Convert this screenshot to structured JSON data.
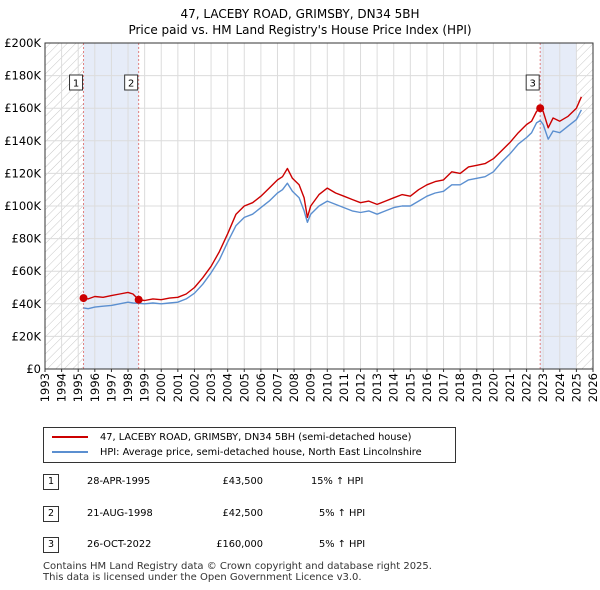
{
  "chart_data": {
    "type": "line",
    "title": "47, LACEBY ROAD, GRIMSBY, DN34 5BH",
    "subtitle": "Price paid vs. HM Land Registry's House Price Index (HPI)",
    "xlabel": "",
    "ylabel": "",
    "xlim": [
      1993,
      2026
    ],
    "ylim": [
      0,
      200000
    ],
    "x_ticks": [
      1993,
      1994,
      1995,
      1996,
      1997,
      1998,
      1999,
      2000,
      2001,
      2002,
      2003,
      2004,
      2005,
      2006,
      2007,
      2008,
      2009,
      2010,
      2011,
      2012,
      2013,
      2014,
      2015,
      2016,
      2017,
      2018,
      2019,
      2020,
      2021,
      2022,
      2023,
      2024,
      2025,
      2026
    ],
    "y_ticks": [
      {
        "value": 0,
        "label": "£0"
      },
      {
        "value": 20000,
        "label": "£20K"
      },
      {
        "value": 40000,
        "label": "£40K"
      },
      {
        "value": 60000,
        "label": "£60K"
      },
      {
        "value": 80000,
        "label": "£80K"
      },
      {
        "value": 100000,
        "label": "£100K"
      },
      {
        "value": 120000,
        "label": "£120K"
      },
      {
        "value": 140000,
        "label": "£140K"
      },
      {
        "value": 160000,
        "label": "£160K"
      },
      {
        "value": 180000,
        "label": "£180K"
      },
      {
        "value": 200000,
        "label": "£200K"
      }
    ],
    "grid": true,
    "hatched_ranges": [
      [
        1993,
        1995.32
      ],
      [
        2025.0,
        2026
      ]
    ],
    "shaded_range": [
      1995.32,
      1998.64
    ],
    "shaded_range_2": [
      2022.82,
      2025.0
    ],
    "series": [
      {
        "name": "47, LACEBY ROAD, GRIMSBY, DN34 5BH (semi-detached house)",
        "color": "#cc0000",
        "points": [
          [
            1995.32,
            43500
          ],
          [
            1995.6,
            43000
          ],
          [
            1996.0,
            44500
          ],
          [
            1996.5,
            44000
          ],
          [
            1997.0,
            45000
          ],
          [
            1997.5,
            46000
          ],
          [
            1998.0,
            47000
          ],
          [
            1998.3,
            46000
          ],
          [
            1998.64,
            42500
          ],
          [
            1999.0,
            42000
          ],
          [
            1999.5,
            43000
          ],
          [
            2000.0,
            42500
          ],
          [
            2000.5,
            43500
          ],
          [
            2001.0,
            44000
          ],
          [
            2001.5,
            46000
          ],
          [
            2002.0,
            50000
          ],
          [
            2002.5,
            56000
          ],
          [
            2003.0,
            63000
          ],
          [
            2003.5,
            72000
          ],
          [
            2004.0,
            83000
          ],
          [
            2004.5,
            95000
          ],
          [
            2005.0,
            100000
          ],
          [
            2005.5,
            102000
          ],
          [
            2006.0,
            106000
          ],
          [
            2006.5,
            111000
          ],
          [
            2007.0,
            116000
          ],
          [
            2007.3,
            118000
          ],
          [
            2007.6,
            123000
          ],
          [
            2007.9,
            117000
          ],
          [
            2008.3,
            113000
          ],
          [
            2008.6,
            105000
          ],
          [
            2008.8,
            93000
          ],
          [
            2009.0,
            100000
          ],
          [
            2009.5,
            107000
          ],
          [
            2010.0,
            111000
          ],
          [
            2010.5,
            108000
          ],
          [
            2011.0,
            106000
          ],
          [
            2011.5,
            104000
          ],
          [
            2012.0,
            102000
          ],
          [
            2012.5,
            103000
          ],
          [
            2013.0,
            101000
          ],
          [
            2013.5,
            103000
          ],
          [
            2014.0,
            105000
          ],
          [
            2014.5,
            107000
          ],
          [
            2015.0,
            106000
          ],
          [
            2015.5,
            110000
          ],
          [
            2016.0,
            113000
          ],
          [
            2016.5,
            115000
          ],
          [
            2017.0,
            116000
          ],
          [
            2017.5,
            121000
          ],
          [
            2018.0,
            120000
          ],
          [
            2018.5,
            124000
          ],
          [
            2019.0,
            125000
          ],
          [
            2019.5,
            126000
          ],
          [
            2020.0,
            129000
          ],
          [
            2020.5,
            134000
          ],
          [
            2021.0,
            139000
          ],
          [
            2021.5,
            145000
          ],
          [
            2022.0,
            150000
          ],
          [
            2022.3,
            152000
          ],
          [
            2022.6,
            158000
          ],
          [
            2022.82,
            160000
          ],
          [
            2023.0,
            158000
          ],
          [
            2023.3,
            148000
          ],
          [
            2023.6,
            154000
          ],
          [
            2024.0,
            152000
          ],
          [
            2024.5,
            155000
          ],
          [
            2025.0,
            160000
          ],
          [
            2025.3,
            167000
          ]
        ]
      },
      {
        "name": "HPI: Average price, semi-detached house, North East Lincolnshire",
        "color": "#5b8fd0",
        "points": [
          [
            1995.32,
            37500
          ],
          [
            1995.6,
            37000
          ],
          [
            1996.0,
            38000
          ],
          [
            1996.5,
            38500
          ],
          [
            1997.0,
            39000
          ],
          [
            1997.5,
            40000
          ],
          [
            1998.0,
            41000
          ],
          [
            1998.3,
            40500
          ],
          [
            1998.64,
            40300
          ],
          [
            1999.0,
            40000
          ],
          [
            1999.5,
            40500
          ],
          [
            2000.0,
            40000
          ],
          [
            2000.5,
            40500
          ],
          [
            2001.0,
            41000
          ],
          [
            2001.5,
            43000
          ],
          [
            2002.0,
            46500
          ],
          [
            2002.5,
            52000
          ],
          [
            2003.0,
            59000
          ],
          [
            2003.5,
            67000
          ],
          [
            2004.0,
            78000
          ],
          [
            2004.5,
            88000
          ],
          [
            2005.0,
            93000
          ],
          [
            2005.5,
            95000
          ],
          [
            2006.0,
            99000
          ],
          [
            2006.5,
            103000
          ],
          [
            2007.0,
            108000
          ],
          [
            2007.3,
            110000
          ],
          [
            2007.6,
            114000
          ],
          [
            2007.9,
            109000
          ],
          [
            2008.3,
            105000
          ],
          [
            2008.6,
            97000
          ],
          [
            2008.8,
            90000
          ],
          [
            2009.0,
            95000
          ],
          [
            2009.5,
            100000
          ],
          [
            2010.0,
            103000
          ],
          [
            2010.5,
            101000
          ],
          [
            2011.0,
            99000
          ],
          [
            2011.5,
            97000
          ],
          [
            2012.0,
            96000
          ],
          [
            2012.5,
            97000
          ],
          [
            2013.0,
            95000
          ],
          [
            2013.5,
            97000
          ],
          [
            2014.0,
            99000
          ],
          [
            2014.5,
            100000
          ],
          [
            2015.0,
            100000
          ],
          [
            2015.5,
            103000
          ],
          [
            2016.0,
            106000
          ],
          [
            2016.5,
            108000
          ],
          [
            2017.0,
            109000
          ],
          [
            2017.5,
            113000
          ],
          [
            2018.0,
            113000
          ],
          [
            2018.5,
            116000
          ],
          [
            2019.0,
            117000
          ],
          [
            2019.5,
            118000
          ],
          [
            2020.0,
            121000
          ],
          [
            2020.5,
            127000
          ],
          [
            2021.0,
            132000
          ],
          [
            2021.5,
            138000
          ],
          [
            2022.0,
            142000
          ],
          [
            2022.3,
            145000
          ],
          [
            2022.6,
            151000
          ],
          [
            2022.82,
            152400
          ],
          [
            2023.0,
            150000
          ],
          [
            2023.3,
            141000
          ],
          [
            2023.6,
            146000
          ],
          [
            2024.0,
            145000
          ],
          [
            2024.5,
            149000
          ],
          [
            2025.0,
            153000
          ],
          [
            2025.3,
            159000
          ]
        ]
      }
    ],
    "sales": [
      {
        "num": "1",
        "x": 1995.32,
        "value": 43500,
        "date": "28-APR-1995",
        "price": "£43,500",
        "hpi": "15% ↑ HPI"
      },
      {
        "num": "2",
        "x": 1998.64,
        "value": 42500,
        "date": "21-AUG-1998",
        "price": "£42,500",
        "hpi": "5% ↑ HPI"
      },
      {
        "num": "3",
        "x": 2022.82,
        "value": 160000,
        "date": "26-OCT-2022",
        "price": "£160,000",
        "hpi": "5% ↑ HPI"
      }
    ],
    "legend_position": "below"
  },
  "footer": {
    "line1": "Contains HM Land Registry data © Crown copyright and database right 2025.",
    "line2": "This data is licensed under the Open Government Licence v3.0."
  }
}
